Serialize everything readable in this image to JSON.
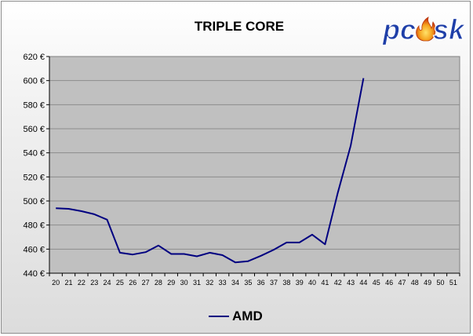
{
  "chart_data": {
    "type": "line",
    "title": "TRIPLE CORE",
    "xlabel": "",
    "ylabel": "",
    "x": [
      20,
      21,
      22,
      23,
      24,
      25,
      26,
      27,
      28,
      29,
      30,
      31,
      32,
      33,
      34,
      35,
      36,
      37,
      38,
      39,
      40,
      41,
      42,
      43,
      44,
      45,
      46,
      47,
      48,
      49,
      50,
      51
    ],
    "ylim": [
      440,
      620
    ],
    "yticks": [
      440,
      460,
      480,
      500,
      520,
      540,
      560,
      580,
      600,
      620
    ],
    "ytick_labels": [
      "440 €",
      "460 €",
      "480 €",
      "500 €",
      "520 €",
      "540 €",
      "560 €",
      "580 €",
      "600 €",
      "620 €"
    ],
    "grid": true,
    "legend_position": "bottom",
    "series": [
      {
        "name": "AMD",
        "color": "#000080",
        "x": [
          20,
          21,
          22,
          23,
          24,
          25,
          26,
          27,
          28,
          29,
          30,
          31,
          32,
          33,
          34,
          35,
          36,
          37,
          38,
          39,
          40,
          41,
          42,
          43,
          44
        ],
        "values": [
          494,
          493.5,
          491.5,
          489,
          484.5,
          457,
          455.5,
          457.5,
          463,
          456,
          456,
          454,
          457,
          455,
          449,
          450,
          454.5,
          459.5,
          465.5,
          465.5,
          472,
          464,
          507,
          546,
          602
        ]
      }
    ]
  },
  "colors": {
    "plot_background": "#c0c0c0",
    "gridline": "#8c8c8c",
    "line": "#000080"
  },
  "logo": {
    "text": "pcsk",
    "colors": [
      "#1f3fa8",
      "#f08a1c"
    ]
  }
}
